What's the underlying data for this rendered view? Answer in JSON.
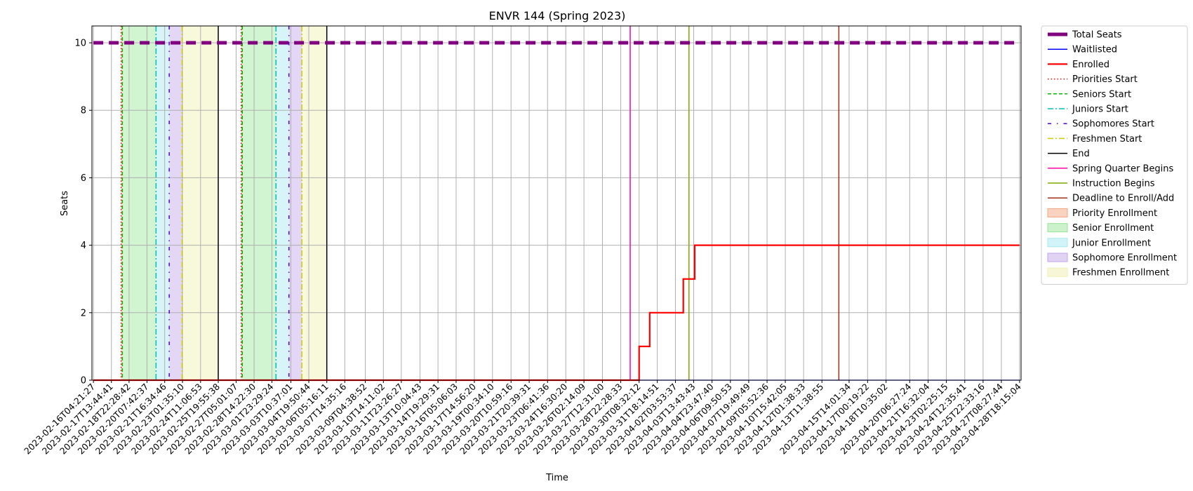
{
  "chart_data": {
    "type": "line",
    "title": "ENVR 144 (Spring 2023)",
    "xlabel": "Time",
    "ylabel": "Seats",
    "ylim": [
      0,
      10.5
    ],
    "yticks": [
      0,
      2,
      4,
      6,
      8,
      10
    ],
    "grid": true,
    "legend_position": "outside-right",
    "xticks": [
      "2023-02-16T04:21:27",
      "2023-02-17T13:44:41",
      "2023-02-18T22:28:42",
      "2023-02-20T07:42:37",
      "2023-02-21T16:34:46",
      "2023-02-23T01:35:10",
      "2023-02-24T11:06:53",
      "2023-02-25T19:55:38",
      "2023-02-27T05:01:07",
      "2023-02-28T14:22:30",
      "2023-03-01T23:29:24",
      "2023-03-03T10:37:01",
      "2023-03-04T19:50:44",
      "2023-03-06T05:16:11",
      "2023-03-07T14:35:16",
      "2023-03-09T04:38:52",
      "2023-03-10T14:11:02",
      "2023-03-11T23:26:27",
      "2023-03-13T10:04:43",
      "2023-03-14T19:29:31",
      "2023-03-16T05:06:03",
      "2023-03-17T14:56:20",
      "2023-03-19T00:34:10",
      "2023-03-20T10:59:16",
      "2023-03-21T20:39:31",
      "2023-03-23T06:41:36",
      "2023-03-24T16:30:20",
      "2023-03-26T02:14:09",
      "2023-03-27T12:31:00",
      "2023-03-28T22:28:33",
      "2023-03-30T08:32:12",
      "2023-03-31T18:14:51",
      "2023-04-02T03:53:37",
      "2023-04-03T13:43:43",
      "2023-04-04T23:47:40",
      "2023-04-06T09:50:53",
      "2023-04-07T19:49:49",
      "2023-04-09T05:52:36",
      "2023-04-10T15:42:05",
      "2023-04-12T01:38:33",
      "2023-04-13T11:38:55",
      "2023-04-15T14:01:34",
      "2023-04-17T00:19:22",
      "2023-04-18T10:35:02",
      "2023-04-20T06:27:24",
      "2023-04-21T16:32:04",
      "2023-04-23T02:25:15",
      "2023-04-24T12:35:41",
      "2023-04-25T22:33:16",
      "2023-04-27T08:27:44",
      "2023-04-28T18:15:04"
    ],
    "series": [
      {
        "name": "Total Seats",
        "color": "#800080",
        "style": "dashed-thick",
        "x": [
          "2023-02-16T04:21:27",
          "2023-04-28T18:15:04"
        ],
        "y": [
          10,
          10
        ]
      },
      {
        "name": "Waitlisted",
        "color": "#0000ff",
        "style": "solid",
        "x": [
          "2023-02-16T04:21:27",
          "2023-04-28T18:15:04"
        ],
        "y": [
          0,
          0
        ]
      },
      {
        "name": "Enrolled",
        "color": "#ff0000",
        "style": "step",
        "x": [
          "2023-02-16T04:21:27",
          "2023-03-30T08:32:12",
          "2023-03-31T04:10:00",
          "2023-04-02T18:30:00",
          "2023-04-03T15:40:00",
          "2023-04-28T18:15:04"
        ],
        "y": [
          0,
          1,
          2,
          3,
          4,
          4
        ]
      }
    ],
    "vlines": [
      {
        "name": "Priorities Start",
        "color": "#ff0000",
        "style": "dotted",
        "x": [
          "2023-02-18T07:45:00",
          "2023-02-27T14:35:00"
        ]
      },
      {
        "name": "Seniors Start",
        "color": "#00bb00",
        "style": "dashed",
        "x": [
          "2023-02-18T10:00:00",
          "2023-02-27T16:30:00"
        ]
      },
      {
        "name": "Juniors Start",
        "color": "#00bfbf",
        "style": "dashdot",
        "x": [
          "2023-02-21T00:30:00",
          "2023-03-02T07:00:00"
        ]
      },
      {
        "name": "Sophomores Start",
        "color": "#5500dd",
        "style": "dashdot-sparse",
        "x": [
          "2023-02-22T01:00:00",
          "2023-03-03T07:00:00"
        ]
      },
      {
        "name": "Freshmen Start",
        "color": "#cccc00",
        "style": "dashdot",
        "x": [
          "2023-02-23T01:00:00",
          "2023-03-04T07:00:00"
        ]
      },
      {
        "name": "End",
        "color": "#000000",
        "style": "solid",
        "x": [
          "2023-02-25T19:55:38",
          "2023-03-06T05:16:11"
        ]
      },
      {
        "name": "Spring Quarter Begins",
        "color": "#ff00aa",
        "style": "solid",
        "x": [
          "2023-03-29T16:00:00"
        ]
      },
      {
        "name": "Instruction Begins",
        "color": "#7faa00",
        "style": "solid",
        "x": [
          "2023-04-03T05:00:00"
        ]
      },
      {
        "name": "Deadline to Enroll/Add",
        "color": "#a0301a",
        "style": "solid",
        "x": [
          "2023-04-14T19:00:00"
        ]
      }
    ],
    "spans": [
      {
        "name": "Priority Enrollment",
        "color": "#f4a582",
        "ranges": [
          [
            "2023-02-18T07:45:00",
            "2023-02-18T10:00:00"
          ],
          [
            "2023-02-27T14:35:00",
            "2023-02-27T16:30:00"
          ]
        ]
      },
      {
        "name": "Senior Enrollment",
        "color": "#98e698",
        "ranges": [
          [
            "2023-02-18T10:00:00",
            "2023-02-21T00:30:00"
          ],
          [
            "2023-02-27T16:30:00",
            "2023-03-02T07:00:00"
          ]
        ]
      },
      {
        "name": "Junior Enrollment",
        "color": "#a6e8ef",
        "ranges": [
          [
            "2023-02-21T00:30:00",
            "2023-02-22T01:00:00"
          ],
          [
            "2023-03-02T07:00:00",
            "2023-03-03T07:00:00"
          ]
        ]
      },
      {
        "name": "Sophomore Enrollment",
        "color": "#c0a6e8",
        "ranges": [
          [
            "2023-02-22T01:00:00",
            "2023-02-23T01:00:00"
          ],
          [
            "2023-03-03T07:00:00",
            "2023-03-04T07:00:00"
          ]
        ]
      },
      {
        "name": "Freshmen Enrollment",
        "color": "#f0f0b0",
        "ranges": [
          [
            "2023-02-23T01:00:00",
            "2023-02-25T19:55:38"
          ],
          [
            "2023-03-04T07:00:00",
            "2023-03-06T05:16:11"
          ]
        ]
      }
    ]
  }
}
